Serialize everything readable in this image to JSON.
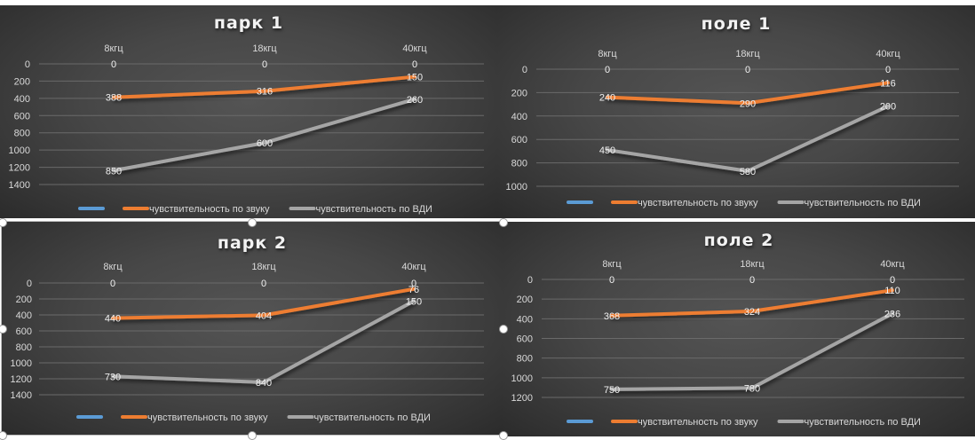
{
  "colors": {
    "series0": "#5b9bd5",
    "series1": "#ed7d31",
    "series2": "#a5a5a5",
    "grid": "#6a6a6a",
    "text": "#d9d9d9"
  },
  "chart_data": [
    {
      "type": "line",
      "stacked": true,
      "title": "парк  1",
      "categories": [
        "8кгц",
        "18кгц",
        "40кгц"
      ],
      "y_reversed": true,
      "ylim": [
        0,
        1400
      ],
      "yticks": [
        0,
        200,
        400,
        600,
        800,
        1000,
        1200,
        1400
      ],
      "grid": true,
      "legend_position": "bottom",
      "series": [
        {
          "name": "",
          "values": [
            0,
            0,
            0
          ]
        },
        {
          "name": "чувствительность по звуку",
          "values": [
            388,
            316,
            150
          ]
        },
        {
          "name": "чувствительность по ВДИ",
          "values": [
            850,
            600,
            260
          ]
        }
      ]
    },
    {
      "type": "line",
      "stacked": true,
      "title": "поле 1",
      "categories": [
        "8кгц",
        "18кгц",
        "40кгц"
      ],
      "y_reversed": true,
      "ylim": [
        0,
        1000
      ],
      "yticks": [
        0,
        200,
        400,
        600,
        800,
        1000
      ],
      "grid": true,
      "legend_position": "bottom",
      "series": [
        {
          "name": "",
          "values": [
            0,
            0,
            0
          ]
        },
        {
          "name": "чувствительность по звуку",
          "values": [
            240,
            290,
            116
          ]
        },
        {
          "name": "чувствительность по ВДИ",
          "values": [
            450,
            580,
            200
          ]
        }
      ]
    },
    {
      "type": "line",
      "stacked": true,
      "title": "парк 2",
      "categories": [
        "8кгц",
        "18кгц",
        "40кгц"
      ],
      "y_reversed": true,
      "ylim": [
        0,
        1400
      ],
      "yticks": [
        0,
        200,
        400,
        600,
        800,
        1000,
        1200,
        1400
      ],
      "grid": true,
      "legend_position": "bottom",
      "selected": true,
      "series": [
        {
          "name": "",
          "values": [
            0,
            0,
            0
          ]
        },
        {
          "name": "чувствительность по звуку",
          "values": [
            440,
            404,
            76
          ]
        },
        {
          "name": "чувствительность по ВДИ",
          "values": [
            730,
            840,
            150
          ]
        }
      ]
    },
    {
      "type": "line",
      "stacked": true,
      "title": "поле 2",
      "categories": [
        "8кгц",
        "18кгц",
        "40кгц"
      ],
      "y_reversed": true,
      "ylim": [
        0,
        1200
      ],
      "yticks": [
        0,
        200,
        400,
        600,
        800,
        1000,
        1200
      ],
      "grid": true,
      "legend_position": "bottom",
      "series": [
        {
          "name": "",
          "values": [
            0,
            0,
            0
          ]
        },
        {
          "name": "чувствительность по звуку",
          "values": [
            368,
            324,
            110
          ]
        },
        {
          "name": "чувствительность по ВДИ",
          "values": [
            750,
            780,
            236
          ]
        }
      ]
    }
  ]
}
